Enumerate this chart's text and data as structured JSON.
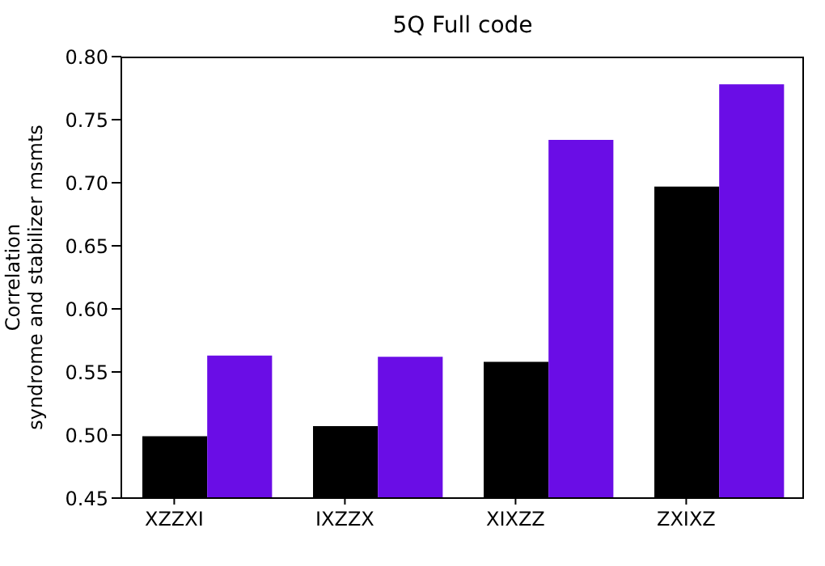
{
  "chart_data": {
    "type": "bar",
    "title": "5Q Full code",
    "ylabel": "Correlation\nsyndrome and stabilizer msmts",
    "categories": [
      "XZZXI",
      "IXZZX",
      "XIXZZ",
      "ZXIXZ"
    ],
    "series": [
      {
        "color": "#000000",
        "values": [
          0.499,
          0.507,
          0.558,
          0.697
        ]
      },
      {
        "color": "#6a0de6",
        "values": [
          0.563,
          0.562,
          0.734,
          0.778
        ]
      }
    ],
    "ylim": [
      0.45,
      0.8
    ],
    "yticks": [
      {
        "value": 0.45,
        "label": "0.45"
      },
      {
        "value": 0.5,
        "label": "0.50"
      },
      {
        "value": 0.55,
        "label": "0.55"
      },
      {
        "value": 0.6,
        "label": "0.60"
      },
      {
        "value": 0.65,
        "label": "0.65"
      },
      {
        "value": 0.7,
        "label": "0.70"
      },
      {
        "value": 0.75,
        "label": "0.75"
      },
      {
        "value": 0.8,
        "label": "0.80"
      }
    ],
    "grid": false,
    "legend": false
  }
}
